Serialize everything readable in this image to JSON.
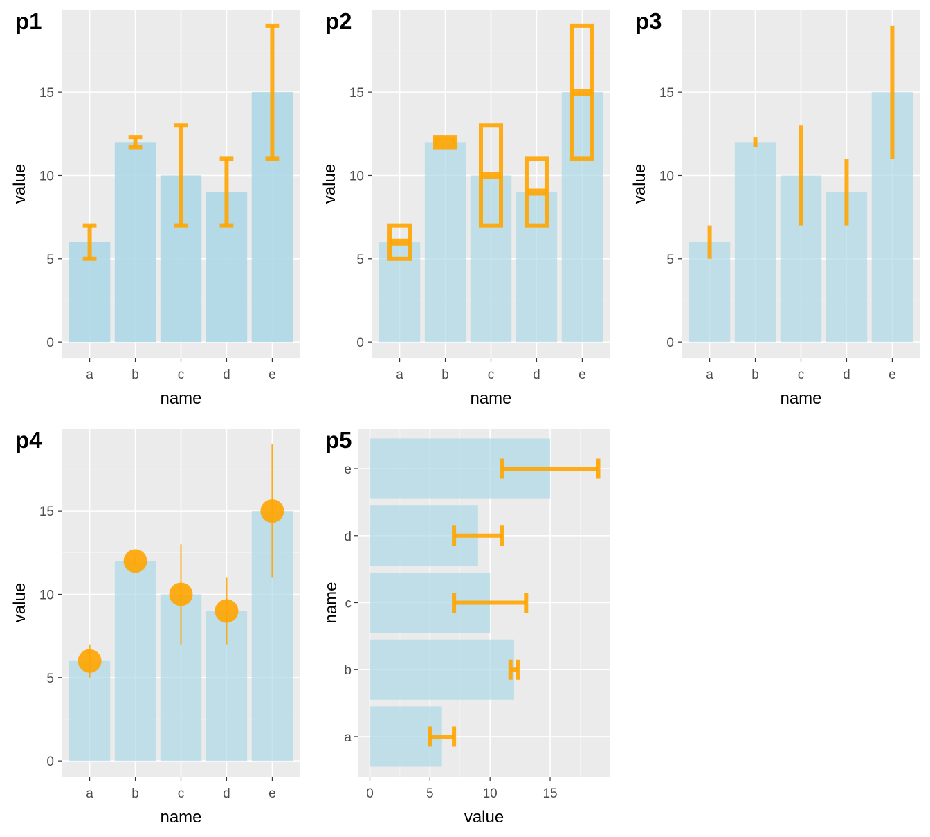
{
  "colors": {
    "bar": "#add8e6",
    "error": "#ffa500",
    "panel_bg": "#ebebeb"
  },
  "chart_data": [
    {
      "tag": "p1",
      "type": "bar",
      "orientation": "vertical",
      "error_style": "errorbar",
      "bar_alpha": 0.9,
      "categories": [
        "a",
        "b",
        "c",
        "d",
        "e"
      ],
      "values": [
        6,
        12,
        10,
        9,
        15
      ],
      "lower": [
        5,
        11.7,
        7,
        7,
        11
      ],
      "upper": [
        7,
        12.3,
        13,
        11,
        19
      ],
      "xlabel": "name",
      "ylabel": "value",
      "yticks": [
        0,
        5,
        10,
        15
      ],
      "ylim": [
        -0.95,
        19.95
      ],
      "grid": true
    },
    {
      "tag": "p2",
      "type": "bar",
      "orientation": "vertical",
      "error_style": "crossbar",
      "bar_alpha": 0.7,
      "categories": [
        "a",
        "b",
        "c",
        "d",
        "e"
      ],
      "values": [
        6,
        12,
        10,
        9,
        15
      ],
      "lower": [
        5,
        11.7,
        7,
        7,
        11
      ],
      "upper": [
        7,
        12.3,
        13,
        11,
        19
      ],
      "xlabel": "name",
      "ylabel": "value",
      "yticks": [
        0,
        5,
        10,
        15
      ],
      "ylim": [
        -0.95,
        19.95
      ],
      "grid": true
    },
    {
      "tag": "p3",
      "type": "bar",
      "orientation": "vertical",
      "error_style": "linerange",
      "bar_alpha": 0.7,
      "categories": [
        "a",
        "b",
        "c",
        "d",
        "e"
      ],
      "values": [
        6,
        12,
        10,
        9,
        15
      ],
      "lower": [
        5,
        11.7,
        7,
        7,
        11
      ],
      "upper": [
        7,
        12.3,
        13,
        11,
        19
      ],
      "xlabel": "name",
      "ylabel": "value",
      "yticks": [
        0,
        5,
        10,
        15
      ],
      "ylim": [
        -0.95,
        19.95
      ],
      "grid": true
    },
    {
      "tag": "p4",
      "type": "bar",
      "orientation": "vertical",
      "error_style": "pointrange",
      "bar_alpha": 0.7,
      "categories": [
        "a",
        "b",
        "c",
        "d",
        "e"
      ],
      "values": [
        6,
        12,
        10,
        9,
        15
      ],
      "lower": [
        5,
        11.7,
        7,
        7,
        11
      ],
      "upper": [
        7,
        12.3,
        13,
        11,
        19
      ],
      "xlabel": "name",
      "ylabel": "value",
      "yticks": [
        0,
        5,
        10,
        15
      ],
      "ylim": [
        -0.95,
        19.95
      ],
      "grid": true
    },
    {
      "tag": "p5",
      "type": "bar",
      "orientation": "horizontal",
      "error_style": "errorbar",
      "bar_alpha": 0.7,
      "categories": [
        "a",
        "b",
        "c",
        "d",
        "e"
      ],
      "values": [
        6,
        12,
        10,
        9,
        15
      ],
      "lower": [
        5,
        11.7,
        7,
        7,
        11
      ],
      "upper": [
        7,
        12.3,
        13,
        11,
        19
      ],
      "xlabel": "value",
      "ylabel": "name",
      "xticks": [
        0,
        5,
        10,
        15
      ],
      "xlim": [
        -0.95,
        19.95
      ],
      "grid": true
    }
  ]
}
